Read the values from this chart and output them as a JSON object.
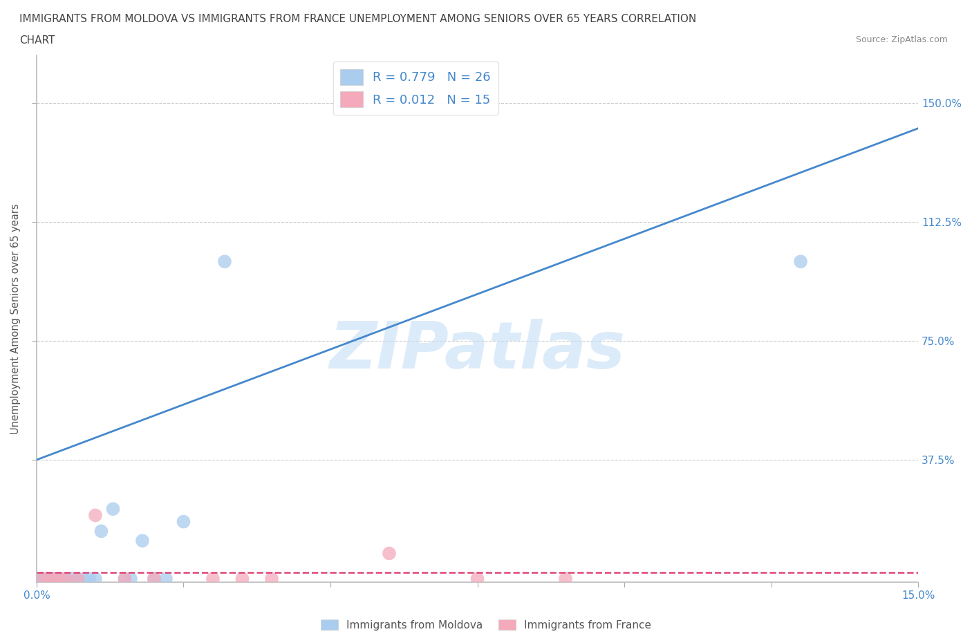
{
  "title_line1": "IMMIGRANTS FROM MOLDOVA VS IMMIGRANTS FROM FRANCE UNEMPLOYMENT AMONG SENIORS OVER 65 YEARS CORRELATION",
  "title_line2": "CHART",
  "source": "Source: ZipAtlas.com",
  "ylabel": "Unemployment Among Seniors over 65 years",
  "background_color": "#ffffff",
  "moldova_color": "#aaccee",
  "france_color": "#f4aabb",
  "trendline_moldova_color": "#4488cc",
  "trendline_france_color": "#dd4477",
  "R_moldova": 0.779,
  "N_moldova": 26,
  "R_france": 0.012,
  "N_france": 15,
  "ytick_values": [
    0.375,
    0.75,
    1.125,
    1.5
  ],
  "ytick_labels": [
    "37.5%",
    "75.0%",
    "112.5%",
    "150.0%"
  ],
  "xlim": [
    0.0,
    0.15
  ],
  "ylim": [
    -0.01,
    1.65
  ],
  "moldova_x": [
    0.001,
    0.001,
    0.001,
    0.002,
    0.002,
    0.003,
    0.003,
    0.004,
    0.004,
    0.005,
    0.005,
    0.006,
    0.007,
    0.008,
    0.009,
    0.01,
    0.011,
    0.013,
    0.015,
    0.016,
    0.018,
    0.02,
    0.022,
    0.025,
    0.032,
    0.13
  ],
  "moldova_y": [
    0.0,
    0.0,
    0.0,
    0.0,
    0.0,
    0.0,
    0.0,
    0.0,
    0.0,
    0.0,
    0.0,
    0.0,
    0.0,
    0.0,
    0.0,
    0.0,
    0.15,
    0.22,
    0.0,
    0.0,
    0.12,
    0.0,
    0.0,
    0.18,
    1.0,
    1.0
  ],
  "france_x": [
    0.001,
    0.002,
    0.003,
    0.004,
    0.005,
    0.007,
    0.01,
    0.015,
    0.02,
    0.03,
    0.035,
    0.04,
    0.06,
    0.075,
    0.09
  ],
  "france_y": [
    0.0,
    0.0,
    0.0,
    0.0,
    0.0,
    0.0,
    0.2,
    0.0,
    0.0,
    0.0,
    0.0,
    0.0,
    0.08,
    0.0,
    0.0
  ],
  "trendline_moldova_x0": 0.0,
  "trendline_moldova_y0": 0.375,
  "trendline_moldova_x1": 0.15,
  "trendline_moldova_y1": 1.42,
  "trendline_france_y": 0.02,
  "watermark_text": "ZIPatlas",
  "watermark_color": "#c5dff5",
  "legend_label_moldova": "Immigrants from Moldova",
  "legend_label_france": "Immigrants from France",
  "title_color": "#444444",
  "axis_tick_color": "#4488cc",
  "legend_text_color": "#4488cc",
  "grid_color": "#cccccc",
  "xtick_positions": [
    0.0,
    0.025,
    0.05,
    0.075,
    0.1,
    0.125,
    0.15
  ],
  "xtick_show_labels": [
    true,
    false,
    false,
    false,
    false,
    false,
    true
  ]
}
